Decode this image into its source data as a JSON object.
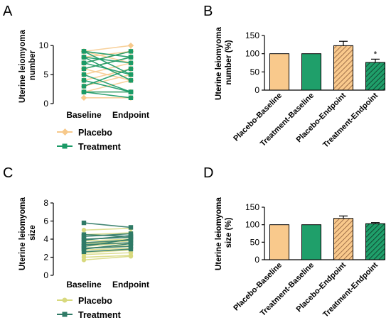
{
  "colors": {
    "placeboA": "#f7c98b",
    "treatmentA": "#1a9a66",
    "placeboC": "#d8d97e",
    "treatmentC": "#2f7a66",
    "barPlacebo": "#f9c98c",
    "barTreatment": "#1f9f6a",
    "hatch": "#8a5a3a",
    "hatchDark": "#0e3f2c"
  },
  "chart_data": [
    {
      "id": "A",
      "panel_label": "A",
      "type": "line",
      "ylabel": "Uterine leiomyoma number",
      "ylabel_lines": [
        "Uterine leiomyoma",
        "number"
      ],
      "categories": [
        "Baseline",
        "Endpoint"
      ],
      "yticks": [
        0,
        5,
        10
      ],
      "ylim": [
        0,
        11
      ],
      "legend": [
        {
          "name": "Placebo"
        },
        {
          "name": "Treatment"
        }
      ],
      "series": [
        {
          "name": "Placebo",
          "values": [
            [
              9,
              10
            ],
            [
              8,
              9
            ],
            [
              7,
              9
            ],
            [
              6,
              8
            ],
            [
              5,
              7
            ],
            [
              4,
              6
            ],
            [
              3,
              5
            ],
            [
              2,
              2
            ],
            [
              1,
              1
            ],
            [
              6,
              4
            ],
            [
              9,
              7
            ],
            [
              2,
              4
            ]
          ]
        },
        {
          "name": "Treatment",
          "values": [
            [
              9,
              5
            ],
            [
              8,
              4
            ],
            [
              7,
              9
            ],
            [
              6,
              8
            ],
            [
              5,
              2
            ],
            [
              4,
              2
            ],
            [
              2,
              1
            ],
            [
              3,
              6
            ],
            [
              8,
              7
            ],
            [
              7,
              5
            ],
            [
              9,
              8
            ],
            [
              2,
              2
            ]
          ]
        }
      ]
    },
    {
      "id": "B",
      "panel_label": "B",
      "type": "bar",
      "ylabel": "Uterine leiomyoma number (%)",
      "ylabel_lines": [
        "Uterine leiomyoma",
        "number (%)"
      ],
      "categories": [
        "Placebo-Baseline",
        "Treatment-Baseline",
        "Placebo-Endpoint",
        "Treatment-Endpoint"
      ],
      "values": [
        100,
        100,
        122,
        76
      ],
      "errors": [
        0,
        0,
        12,
        9
      ],
      "annotations": [
        "",
        "",
        "",
        "*"
      ],
      "yticks": [
        0,
        50,
        100,
        150
      ],
      "ylim": [
        0,
        150
      ]
    },
    {
      "id": "C",
      "panel_label": "C",
      "type": "line",
      "ylabel": "Uterine leiomyoma size",
      "ylabel_lines": [
        "Uterine leiomyoma",
        "size"
      ],
      "categories": [
        "Baseline",
        "Endpoint"
      ],
      "yticks": [
        0,
        2,
        4,
        6,
        8
      ],
      "ylim": [
        0,
        8
      ],
      "legend": [
        {
          "name": "Placebo"
        },
        {
          "name": "Treatment"
        }
      ],
      "series": [
        {
          "name": "Placebo",
          "values": [
            [
              5.0,
              5.2
            ],
            [
              4.5,
              4.7
            ],
            [
              3.8,
              4.0
            ],
            [
              3.5,
              3.8
            ],
            [
              3.2,
              3.6
            ],
            [
              3.0,
              3.3
            ],
            [
              2.8,
              3.0
            ],
            [
              2.5,
              2.8
            ],
            [
              2.3,
              2.5
            ],
            [
              2.0,
              2.2
            ],
            [
              1.7,
              2.1
            ]
          ]
        },
        {
          "name": "Treatment",
          "values": [
            [
              5.8,
              5.3
            ],
            [
              4.3,
              4.6
            ],
            [
              4.0,
              4.2
            ],
            [
              3.9,
              4.4
            ],
            [
              3.6,
              3.9
            ],
            [
              3.4,
              3.6
            ],
            [
              3.2,
              4.0
            ],
            [
              3.0,
              3.2
            ],
            [
              2.9,
              3.5
            ],
            [
              2.6,
              2.9
            ],
            [
              4.5,
              4.3
            ]
          ]
        }
      ]
    },
    {
      "id": "D",
      "panel_label": "D",
      "type": "bar",
      "ylabel": "Uterine leiomyoma size (%)",
      "ylabel_lines": [
        "Uterine leiomyoma",
        "size (%)"
      ],
      "categories": [
        "Placebo-Baseline",
        "Treatment-Baseline",
        "Placebo-Endpoint",
        "Treatment-Endpoint"
      ],
      "values": [
        100,
        100,
        118,
        103
      ],
      "errors": [
        0,
        0,
        7,
        3
      ],
      "annotations": [
        "",
        "",
        "",
        ""
      ],
      "yticks": [
        0,
        50,
        100,
        150
      ],
      "ylim": [
        0,
        150
      ]
    }
  ]
}
